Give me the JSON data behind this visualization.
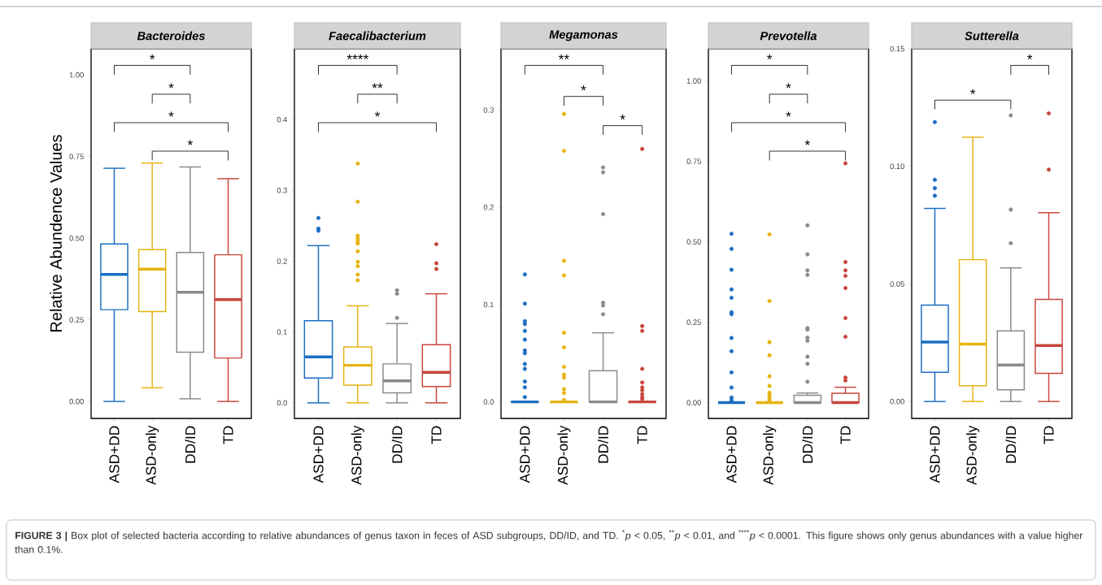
{
  "chart_data": [
    {
      "type": "box",
      "title": "Bacteroides",
      "ylabel": "Relative Abundence Values",
      "categories": [
        "ASD+DD",
        "ASD-only",
        "DD/ID",
        "TD"
      ],
      "colors": [
        "#1b6ec2",
        "#e6b312",
        "#8a8a8a",
        "#c7453c"
      ],
      "ylim": [
        -0.052,
        1.08
      ],
      "yticks": [
        {
          "value": 0,
          "label": "0.00"
        },
        0.25,
        {
          "value": 0.5,
          "label": "0.50"
        },
        0.75,
        {
          "value": 1,
          "label": "1.00"
        }
      ],
      "boxes": [
        {
          "low": 0,
          "q1": 0.281,
          "median": 0.389,
          "q3": 0.482,
          "high": 0.714
        },
        {
          "low": 0.042,
          "q1": 0.275,
          "median": 0.405,
          "q3": 0.465,
          "high": 0.73
        },
        {
          "low": 0.008,
          "q1": 0.151,
          "median": 0.334,
          "q3": 0.456,
          "high": 0.718
        },
        {
          "low": 0,
          "q1": 0.133,
          "median": 0.312,
          "q3": 0.449,
          "high": 0.682
        }
      ],
      "annotations": [
        "*",
        "*",
        "*",
        "*",
        "**FIGURE 3 |** Box plot of selected bacteria according to relative abundances of genus taxon in feces of ASD subgroups, DD/ID, and TD. $^{*}$*p* < 0.05, $^{**}$*p* < 0.01, and $^{****}$*p* < 0.0001. This figure shows only genus abundances with a value higher than 0.1%."
      ]
    },
    {
      "type": "box",
      "title": "Faecalibacterium",
      "categories": [
        "ASD+DD",
        "ASD-only",
        "DD/ID",
        "TD"
      ],
      "colors": [
        "#1b6ec2",
        "#e6b312",
        "#8a8a8a",
        "#c7453c"
      ],
      "ylim": [
        -0.022,
        0.5
      ],
      "yticks": [
        {
          "value": 0,
          "label": "0.0"
        },
        0.1,
        0.2,
        0.3,
        0.4
      ],
      "boxes": [
        {
          "low": 0,
          "q1": 0.035,
          "median": 0.065,
          "q3": 0.116,
          "high": 0.222,
          "outliers": [
            0.261,
            0.246,
            0.243
          ]
        },
        {
          "low": 0,
          "q1": 0.025,
          "median": 0.053,
          "q3": 0.079,
          "high": 0.137,
          "outliers": [
            0.338,
            0.284,
            0.236,
            0.232,
            0.228,
            0.225,
            0.214,
            0.199,
            0.193,
            0.181,
            0.173
          ]
        },
        {
          "low": 0,
          "q1": 0.014,
          "median": 0.031,
          "q3": 0.055,
          "high": 0.112,
          "outliers": [
            0.159,
            0.154,
            0.12
          ]
        },
        {
          "low": 0,
          "q1": 0.023,
          "median": 0.043,
          "q3": 0.082,
          "high": 0.154,
          "outliers": [
            0.224,
            0.197,
            0.189
          ]
        }
      ],
      "annotations": [
        "****",
        "**",
        "*"
      ]
    },
    {
      "type": "box",
      "title": "Megamonas",
      "categories": [
        "ASD+DD",
        "ASD-only",
        "DD/ID",
        "TD"
      ],
      "colors": [
        "#1b6ec2",
        "#e6b312",
        "#8a8a8a",
        "#c7453c"
      ],
      "ylim": [
        -0.017,
        0.363
      ],
      "yticks": [
        {
          "value": 0,
          "label": "0.0"
        },
        0.1,
        0.2,
        0.3
      ],
      "boxes": [
        {
          "low": 0,
          "q1": 0,
          "median": 0,
          "q3": 0,
          "high": 0,
          "outliers": [
            0.131,
            0.101,
            0.083,
            0.08,
            0.073,
            0.064,
            0.053,
            0.05,
            0.039,
            0.034,
            0.021,
            0.015,
            0.005
          ]
        },
        {
          "low": 0,
          "q1": 0,
          "median": 0,
          "q3": 0,
          "high": 0,
          "outliers": [
            0.296,
            0.258,
            0.145,
            0.13,
            0.071,
            0.056,
            0.036,
            0.028,
            0.025,
            0.013,
            0.009,
            0.002
          ]
        },
        {
          "low": 0,
          "q1": 0,
          "median": 0,
          "q3": 0.032,
          "high": 0.071,
          "outliers": [
            0.241,
            0.236,
            0.193,
            0.102,
            0.099,
            0.09
          ]
        },
        {
          "low": 0,
          "q1": 0,
          "median": 0,
          "q3": 0,
          "high": 0,
          "outliers": [
            0.26,
            0.078,
            0.073,
            0.034,
            0.02,
            0.015,
            0.012,
            0.008,
            0.005,
            0.003
          ]
        }
      ],
      "annotations": [
        "**",
        "*",
        "*"
      ]
    },
    {
      "type": "box",
      "title": "Prevotella",
      "categories": [
        "ASD+DD",
        "ASD-only",
        "DD/ID",
        "TD"
      ],
      "colors": [
        "#1b6ec2",
        "#e6b312",
        "#8a8a8a",
        "#c7453c"
      ],
      "ylim": [
        -0.049,
        1.1
      ],
      "yticks": [
        {
          "value": 0,
          "label": "0.00"
        },
        0.25,
        {
          "value": 0.5,
          "label": "0.50"
        },
        0.75,
        {
          "value": 1,
          "label": "1.00"
        }
      ],
      "boxes": [
        {
          "low": 0,
          "q1": 0,
          "median": 0,
          "q3": 0,
          "high": 0,
          "outliers": [
            0.525,
            0.478,
            0.413,
            0.352,
            0.326,
            0.281,
            0.275,
            0.201,
            0.16,
            0.094,
            0.047,
            0.016,
            0.008
          ]
        },
        {
          "low": 0,
          "q1": 0,
          "median": 0,
          "q3": 0,
          "high": 0,
          "outliers": [
            0.523,
            0.316,
            0.188,
            0.147,
            0.082,
            0.052,
            0.031,
            0.022,
            0.014,
            0.008
          ]
        },
        {
          "low": 0,
          "q1": 0,
          "median": 0,
          "q3": 0.023,
          "high": 0.03,
          "outliers": [
            0.551,
            0.461,
            0.411,
            0.397,
            0.232,
            0.227,
            0.202,
            0.192,
            0.143,
            0.121,
            0.065
          ]
        },
        {
          "low": 0,
          "q1": 0,
          "median": 0,
          "q3": 0.029,
          "high": 0.048,
          "outliers": [
            0.744,
            0.437,
            0.411,
            0.394,
            0.356,
            0.263,
            0.205,
            0.078,
            0.069
          ]
        }
      ],
      "annotations": [
        "*",
        "*",
        "*",
        "*"
      ]
    },
    {
      "type": "box",
      "title": "Sutterella",
      "categories": [
        "ASD+DD",
        "ASD-only",
        "DD/ID",
        "TD"
      ],
      "colors": [
        "#1b6ec2",
        "#e6b312",
        "#8a8a8a",
        "#c7453c"
      ],
      "ylim": [
        -0.0072,
        0.15
      ],
      "yticks": [
        {
          "value": 0,
          "label": "0.00"
        },
        0.05,
        {
          "value": 0.1,
          "label": "0.10"
        },
        0.15
      ],
      "boxes": [
        {
          "low": 0,
          "q1": 0.0124,
          "median": 0.0253,
          "q3": 0.041,
          "high": 0.0821,
          "outliers": [
            0.1188,
            0.0943,
            0.0907,
            0.0875
          ]
        },
        {
          "low": 0,
          "q1": 0.0067,
          "median": 0.0244,
          "q3": 0.0603,
          "high": 0.1124
        },
        {
          "low": 0,
          "q1": 0.005,
          "median": 0.0155,
          "q3": 0.03,
          "high": 0.0568,
          "outliers": [
            0.1217,
            0.0816,
            0.0673
          ]
        },
        {
          "low": 0,
          "q1": 0.012,
          "median": 0.0238,
          "q3": 0.0434,
          "high": 0.0803,
          "outliers": [
            0.1225,
            0.0986
          ]
        }
      ],
      "annotations": [
        "*",
        "*"
      ]
    }
  ]
}
